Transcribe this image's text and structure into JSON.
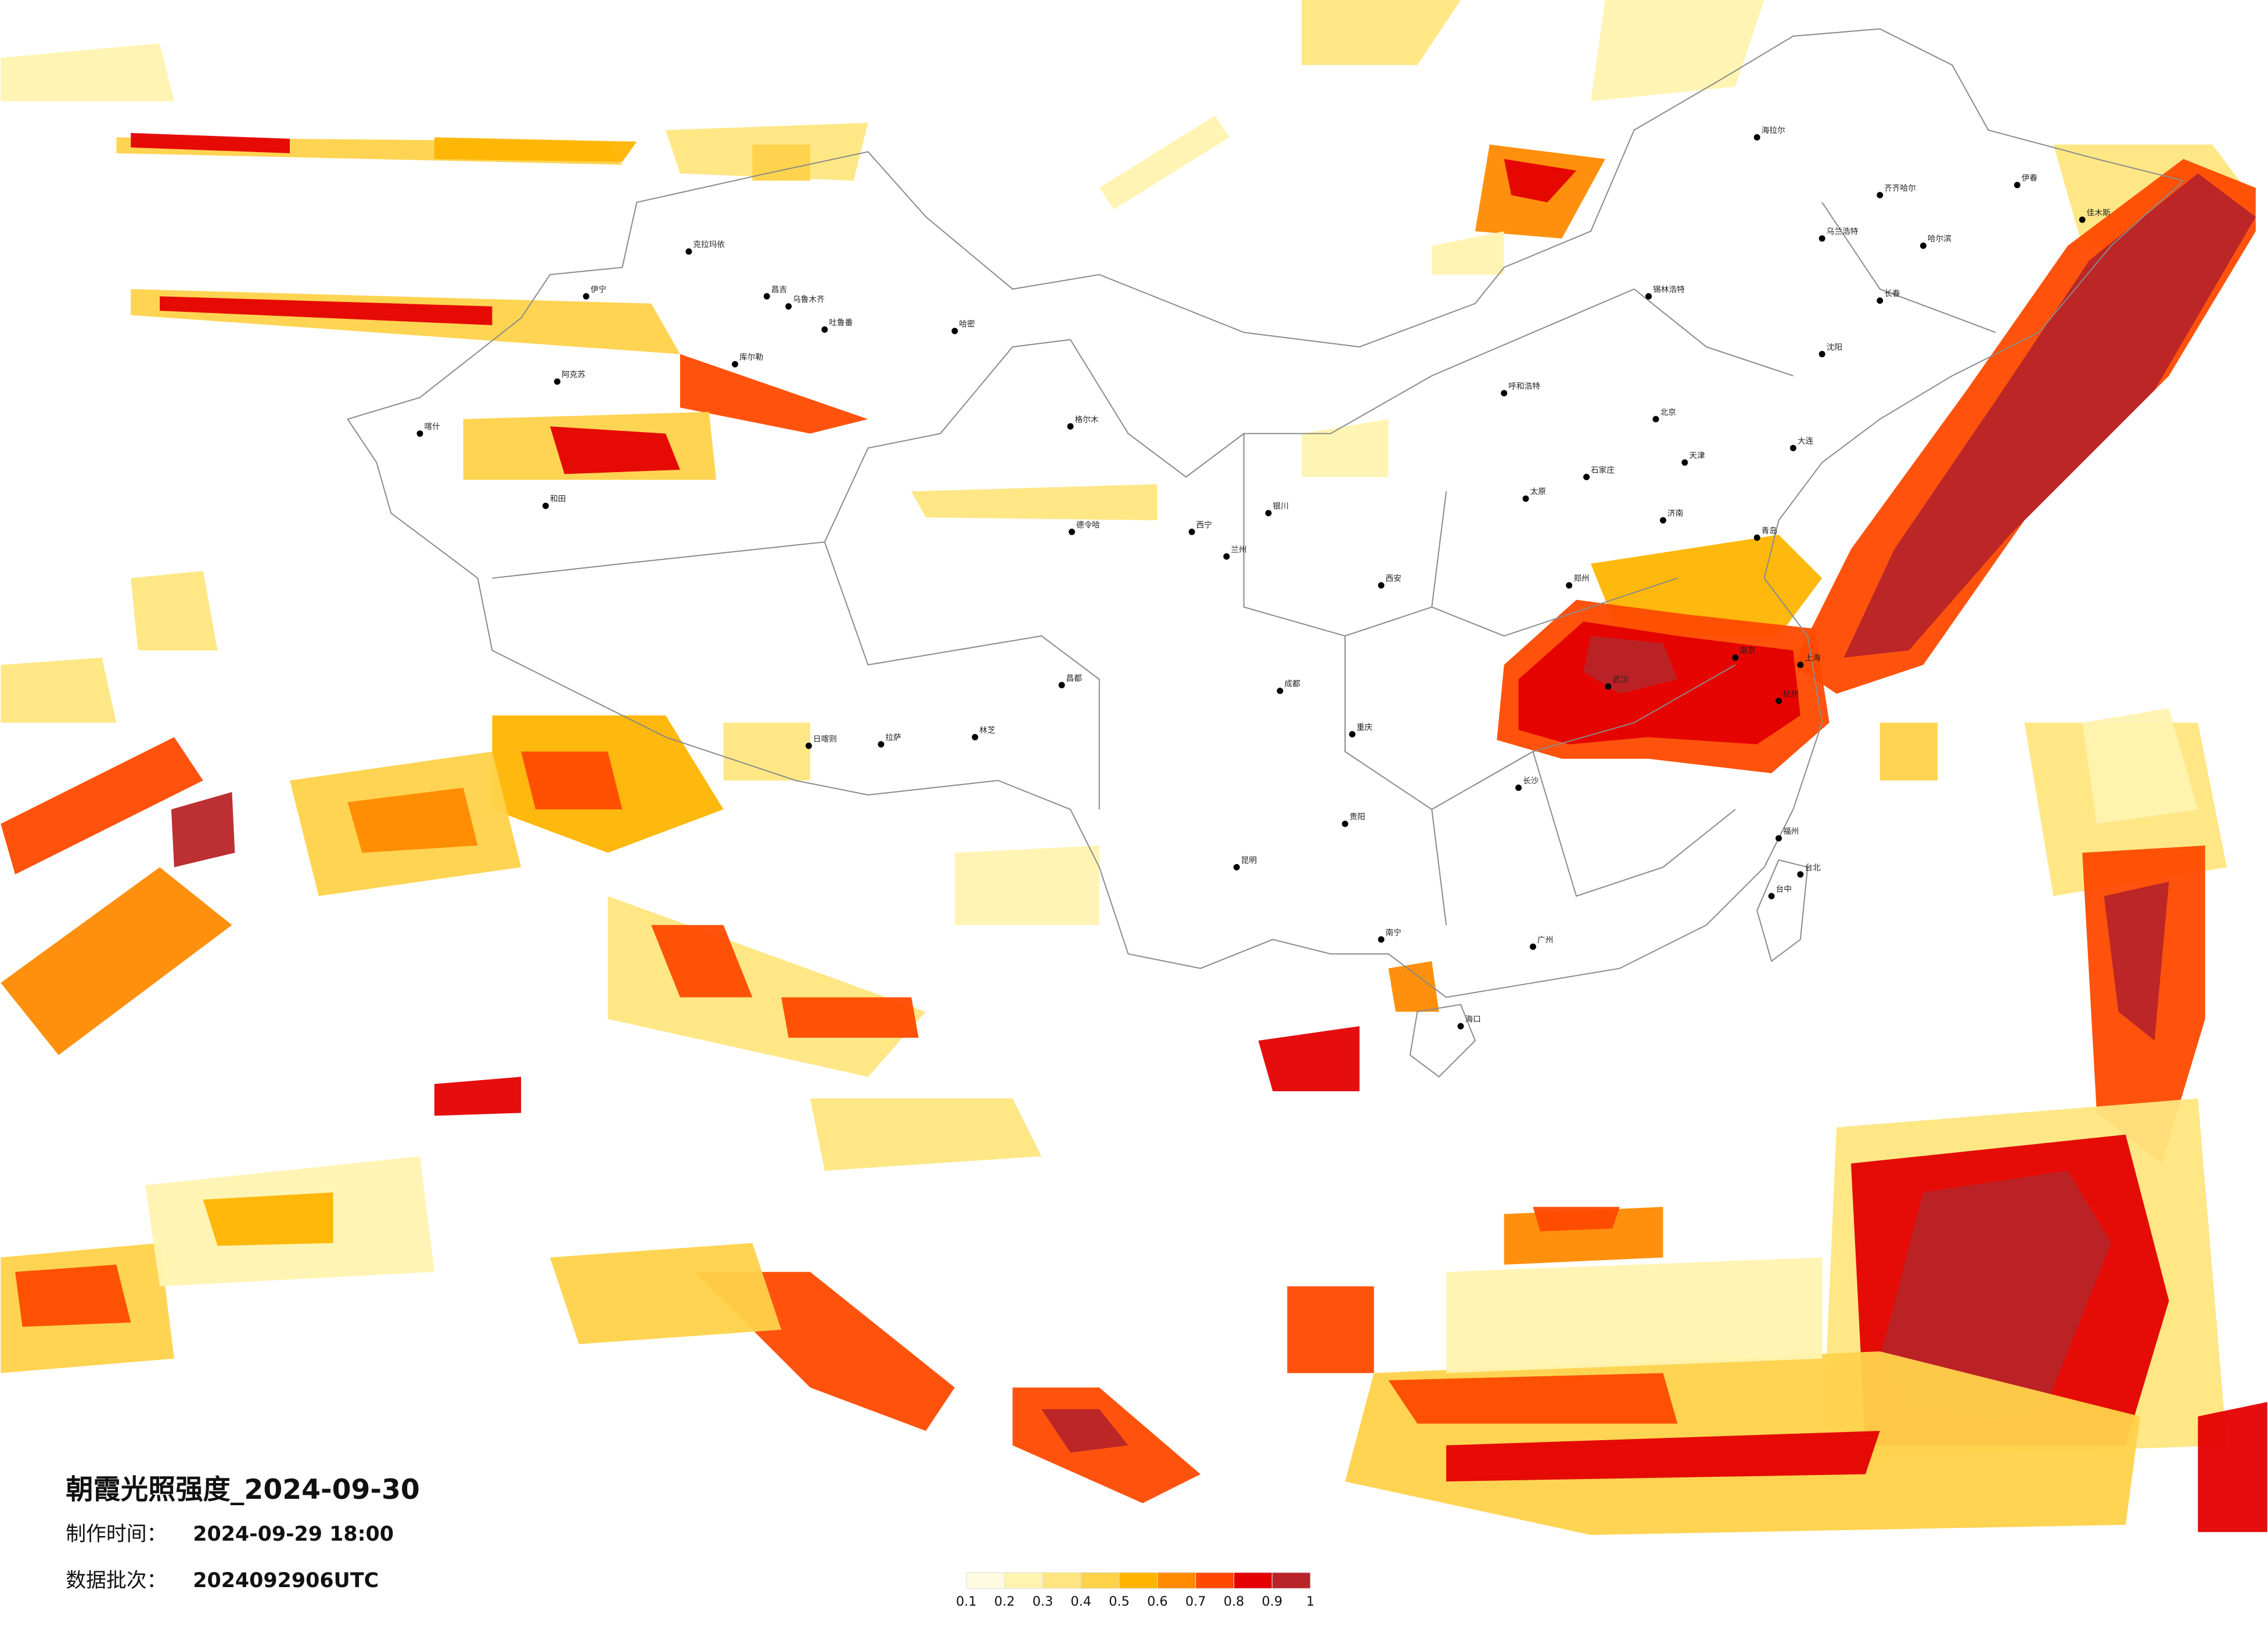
{
  "title": "朝霞光照强度_2024-09-30",
  "made_time": {
    "label": "制作时间：",
    "value": "2024-09-29 18:00"
  },
  "batch": {
    "label": "数据批次：",
    "value": "2024092906UTC"
  },
  "legend": {
    "ticks": [
      0.1,
      0.2,
      0.3,
      0.4,
      0.5,
      0.6,
      0.7,
      0.8,
      0.9,
      1
    ],
    "colors": [
      "#fffbe0",
      "#fff3b0",
      "#ffe680",
      "#ffd24a",
      "#ffb400",
      "#ff8a00",
      "#ff4a00",
      "#e40000",
      "#b82428"
    ]
  },
  "cities": [
    "克拉玛依",
    "昌吉",
    "乌鲁木齐",
    "吐鲁番",
    "哈密",
    "伊宁",
    "库尔勒",
    "阿克苏",
    "喀什",
    "和田",
    "格尔木",
    "德令哈",
    "拉萨",
    "日喀则",
    "林芝",
    "昌都",
    "西宁",
    "兰州",
    "银川",
    "呼和浩特",
    "北京",
    "天津",
    "石家庄",
    "太原",
    "济南",
    "郑州",
    "西安",
    "成都",
    "重庆",
    "贵阳",
    "昆明",
    "南宁",
    "广州",
    "长沙",
    "武汉",
    "南京",
    "上海",
    "杭州",
    "福州",
    "台北",
    "台中",
    "海口",
    "沈阳",
    "长春",
    "哈尔滨",
    "齐齐哈尔",
    "海拉尔",
    "乌兰浩特",
    "锡林浩特",
    "伊春",
    "佳木斯",
    "大连",
    "青岛"
  ]
}
